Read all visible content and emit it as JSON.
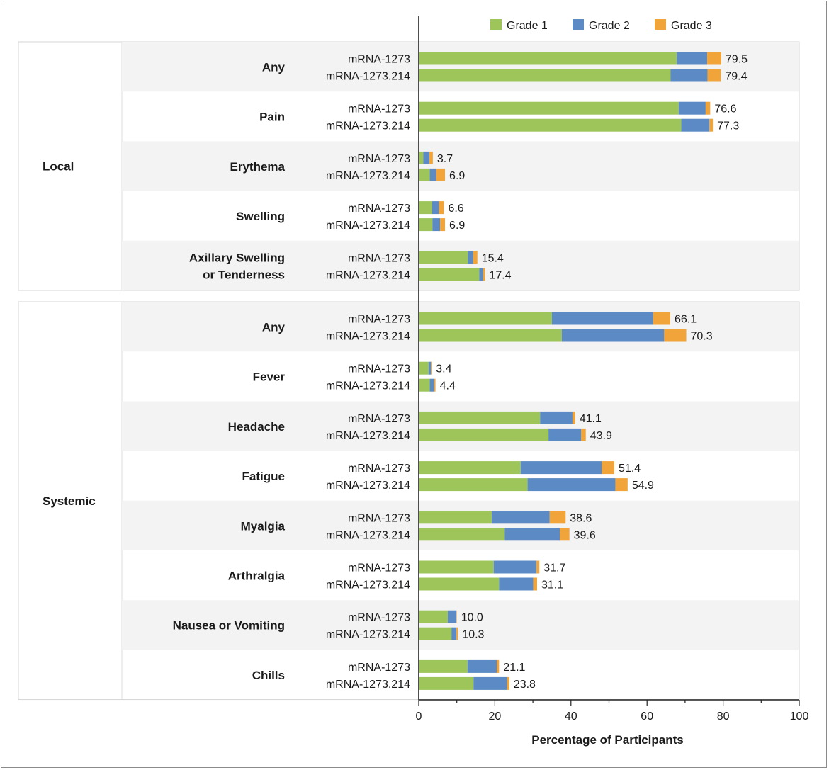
{
  "chart_data": {
    "type": "bar",
    "orientation": "horizontal",
    "stacked": true,
    "title": "",
    "xlabel": "Percentage of Participants",
    "ylabel": "",
    "xlim": [
      0,
      100
    ],
    "xticks": [
      0,
      20,
      40,
      60,
      80,
      100
    ],
    "legend": {
      "placement": "top-right",
      "entries": [
        "Grade 1",
        "Grade 2",
        "Grade 3"
      ]
    },
    "colors": {
      "Grade 1": "#9dc55a",
      "Grade 2": "#5b8ac4",
      "Grade 3": "#f0a43a",
      "band": "#f3f3f3",
      "axis": "#222222"
    },
    "vaccines": [
      "mRNA-1273",
      "mRNA-1273.214"
    ],
    "panels": [
      {
        "label": "Local",
        "categories": [
          {
            "name": "Any",
            "bars": [
              {
                "vaccine": "mRNA-1273",
                "grades": [
                  67.8,
                  8.0,
                  3.7
                ],
                "total": "79.5"
              },
              {
                "vaccine": "mRNA-1273.214",
                "grades": [
                  66.2,
                  9.7,
                  3.5
                ],
                "total": "79.4"
              }
            ]
          },
          {
            "name": "Pain",
            "bars": [
              {
                "vaccine": "mRNA-1273",
                "grades": [
                  68.3,
                  7.1,
                  1.2
                ],
                "total": "76.6"
              },
              {
                "vaccine": "mRNA-1273.214",
                "grades": [
                  69.0,
                  7.4,
                  0.9
                ],
                "total": "77.3"
              }
            ]
          },
          {
            "name": "Erythema",
            "bars": [
              {
                "vaccine": "mRNA-1273",
                "grades": [
                  1.2,
                  1.6,
                  0.9
                ],
                "total": "3.7"
              },
              {
                "vaccine": "mRNA-1273.214",
                "grades": [
                  2.9,
                  1.7,
                  2.3
                ],
                "total": "6.9"
              }
            ]
          },
          {
            "name": "Swelling",
            "bars": [
              {
                "vaccine": "mRNA-1273",
                "grades": [
                  3.5,
                  1.8,
                  1.3
                ],
                "total": "6.6"
              },
              {
                "vaccine": "mRNA-1273.214",
                "grades": [
                  3.6,
                  2.0,
                  1.3
                ],
                "total": "6.9"
              }
            ]
          },
          {
            "name": "Axillary Swelling or Tenderness",
            "lines": [
              "Axillary Swelling",
              "or Tenderness"
            ],
            "bars": [
              {
                "vaccine": "mRNA-1273",
                "grades": [
                  12.9,
                  1.4,
                  1.1
                ],
                "total": "15.4"
              },
              {
                "vaccine": "mRNA-1273.214",
                "grades": [
                  15.9,
                  1.0,
                  0.5
                ],
                "total": "17.4"
              }
            ]
          }
        ]
      },
      {
        "label": "Systemic",
        "categories": [
          {
            "name": "Any",
            "bars": [
              {
                "vaccine": "mRNA-1273",
                "grades": [
                  35.0,
                  26.6,
                  4.5
                ],
                "total": "66.1"
              },
              {
                "vaccine": "mRNA-1273.214",
                "grades": [
                  37.6,
                  26.9,
                  5.8
                ],
                "total": "70.3"
              }
            ]
          },
          {
            "name": "Fever",
            "bars": [
              {
                "vaccine": "mRNA-1273",
                "grades": [
                  2.6,
                  0.6,
                  0.2
                ],
                "total": "3.4"
              },
              {
                "vaccine": "mRNA-1273.214",
                "grades": [
                  2.9,
                  1.1,
                  0.4
                ],
                "total": "4.4"
              }
            ]
          },
          {
            "name": "Headache",
            "bars": [
              {
                "vaccine": "mRNA-1273",
                "grades": [
                  31.9,
                  8.5,
                  0.7
                ],
                "total": "41.1"
              },
              {
                "vaccine": "mRNA-1273.214",
                "grades": [
                  34.1,
                  8.6,
                  1.2
                ],
                "total": "43.9"
              }
            ]
          },
          {
            "name": "Fatigue",
            "bars": [
              {
                "vaccine": "mRNA-1273",
                "grades": [
                  26.8,
                  21.3,
                  3.3
                ],
                "total": "51.4"
              },
              {
                "vaccine": "mRNA-1273.214",
                "grades": [
                  28.6,
                  23.1,
                  3.2
                ],
                "total": "54.9"
              }
            ]
          },
          {
            "name": "Myalgia",
            "bars": [
              {
                "vaccine": "mRNA-1273",
                "grades": [
                  19.2,
                  15.2,
                  4.2
                ],
                "total": "38.6"
              },
              {
                "vaccine": "mRNA-1273.214",
                "grades": [
                  22.6,
                  14.5,
                  2.5
                ],
                "total": "39.6"
              }
            ]
          },
          {
            "name": "Arthralgia",
            "bars": [
              {
                "vaccine": "mRNA-1273",
                "grades": [
                  19.7,
                  11.2,
                  0.8
                ],
                "total": "31.7"
              },
              {
                "vaccine": "mRNA-1273.214",
                "grades": [
                  21.1,
                  9.0,
                  1.0
                ],
                "total": "31.1"
              }
            ]
          },
          {
            "name": "Nausea or Vomiting",
            "bars": [
              {
                "vaccine": "mRNA-1273",
                "grades": [
                  7.6,
                  2.3,
                  0.1
                ],
                "total": "10.0"
              },
              {
                "vaccine": "mRNA-1273.214",
                "grades": [
                  8.6,
                  1.3,
                  0.4
                ],
                "total": "10.3"
              }
            ]
          },
          {
            "name": "Chills",
            "bars": [
              {
                "vaccine": "mRNA-1273",
                "grades": [
                  12.8,
                  7.7,
                  0.6
                ],
                "total": "21.1"
              },
              {
                "vaccine": "mRNA-1273.214",
                "grades": [
                  14.4,
                  8.8,
                  0.6
                ],
                "total": "23.8"
              }
            ]
          }
        ]
      }
    ]
  }
}
